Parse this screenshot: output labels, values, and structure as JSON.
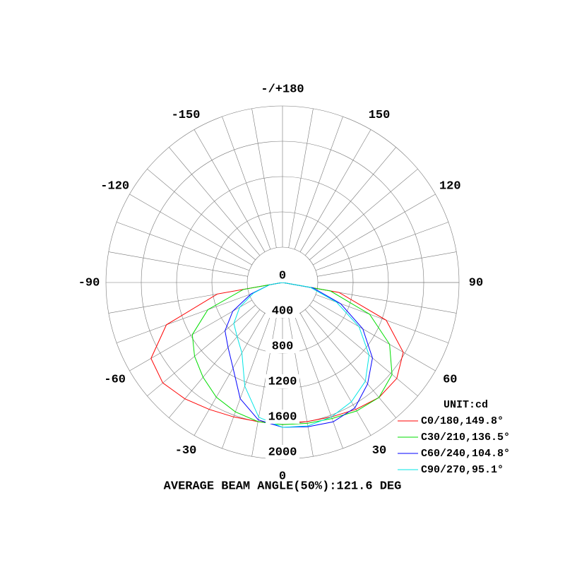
{
  "chart_data": {
    "type": "polar",
    "unit_label": "UNIT:cd",
    "footer": "AVERAGE BEAM ANGLE(50%):121.6 DEG",
    "x": [
      -90,
      -80,
      -70,
      -60,
      -50,
      -40,
      -30,
      -20,
      -10,
      0,
      10,
      20,
      30,
      40,
      50,
      60,
      70,
      80,
      90
    ],
    "series": [
      {
        "name": "C0/180,149.8°",
        "color": "#ff0000",
        "values": [
          0,
          750,
          1400,
          1720,
          1770,
          1720,
          1660,
          1620,
          1600,
          1590,
          1600,
          1620,
          1660,
          1700,
          1690,
          1580,
          1250,
          650,
          0
        ]
      },
      {
        "name": "C30/210,136.5°",
        "color": "#00dd00",
        "values": [
          0,
          450,
          900,
          1180,
          1300,
          1400,
          1500,
          1560,
          1600,
          1610,
          1620,
          1640,
          1680,
          1700,
          1620,
          1400,
          1050,
          550,
          0
        ]
      },
      {
        "name": "C60/240,104.8°",
        "color": "#0000ff",
        "values": [
          0,
          150,
          380,
          650,
          850,
          960,
          1120,
          1400,
          1580,
          1640,
          1660,
          1680,
          1640,
          1500,
          1330,
          1050,
          700,
          350,
          0
        ]
      },
      {
        "name": "C90/270,95.1°",
        "color": "#00e5e5",
        "values": [
          0,
          150,
          350,
          560,
          720,
          800,
          920,
          1250,
          1550,
          1640,
          1650,
          1620,
          1560,
          1460,
          1280,
          1000,
          650,
          320,
          0
        ]
      }
    ],
    "rlim": [
      0,
      2000
    ],
    "rticks": [
      0,
      400,
      800,
      1200,
      1600,
      2000
    ],
    "angle_ticks": [
      {
        "value": 180,
        "label": "-/+180"
      },
      150,
      120,
      90,
      60,
      30,
      0,
      -30,
      -60,
      -90,
      -120,
      -150
    ],
    "angular_grid_step": 10,
    "grid": true
  }
}
